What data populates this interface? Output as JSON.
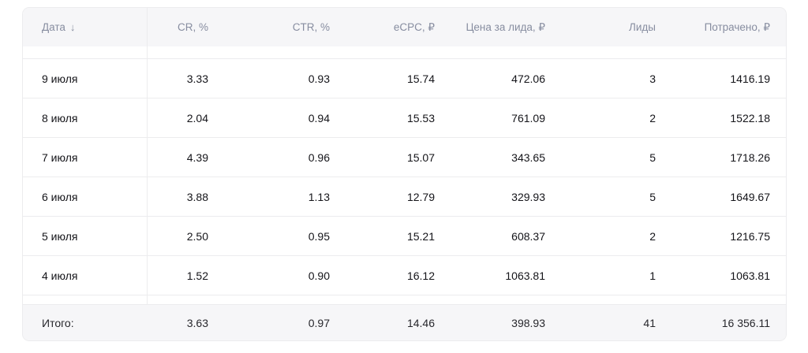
{
  "colors": {
    "header_bg": "#f6f6f8",
    "border": "#ececee",
    "header_text": "#878da0",
    "body_text": "#141419"
  },
  "table": {
    "sort_indicator": "↓",
    "columns": [
      {
        "label": "Дата",
        "align": "left",
        "sorted": "desc"
      },
      {
        "label": "CR, %",
        "align": "right"
      },
      {
        "label": "CTR, %",
        "align": "right"
      },
      {
        "label": "eCPC, ₽",
        "align": "right"
      },
      {
        "label": "Цена за лида, ₽",
        "align": "right"
      },
      {
        "label": "Лиды",
        "align": "right"
      },
      {
        "label": "Потрачено, ₽",
        "align": "right"
      }
    ],
    "rows": [
      {
        "date": "9 июля",
        "cr": "3.33",
        "ctr": "0.93",
        "ecpc": "15.74",
        "cpl": "472.06",
        "leads": "3",
        "spent": "1416.19"
      },
      {
        "date": "8 июля",
        "cr": "2.04",
        "ctr": "0.94",
        "ecpc": "15.53",
        "cpl": "761.09",
        "leads": "2",
        "spent": "1522.18"
      },
      {
        "date": "7 июля",
        "cr": "4.39",
        "ctr": "0.96",
        "ecpc": "15.07",
        "cpl": "343.65",
        "leads": "5",
        "spent": "1718.26"
      },
      {
        "date": "6 июля",
        "cr": "3.88",
        "ctr": "1.13",
        "ecpc": "12.79",
        "cpl": "329.93",
        "leads": "5",
        "spent": "1649.67"
      },
      {
        "date": "5 июля",
        "cr": "2.50",
        "ctr": "0.95",
        "ecpc": "15.21",
        "cpl": "608.37",
        "leads": "2",
        "spent": "1216.75"
      },
      {
        "date": "4 июля",
        "cr": "1.52",
        "ctr": "0.90",
        "ecpc": "16.12",
        "cpl": "1063.81",
        "leads": "1",
        "spent": "1063.81"
      }
    ],
    "total": {
      "label": "Итого:",
      "cr": "3.63",
      "ctr": "0.97",
      "ecpc": "14.46",
      "cpl": "398.93",
      "leads": "41",
      "spent": "16 356.11"
    }
  }
}
